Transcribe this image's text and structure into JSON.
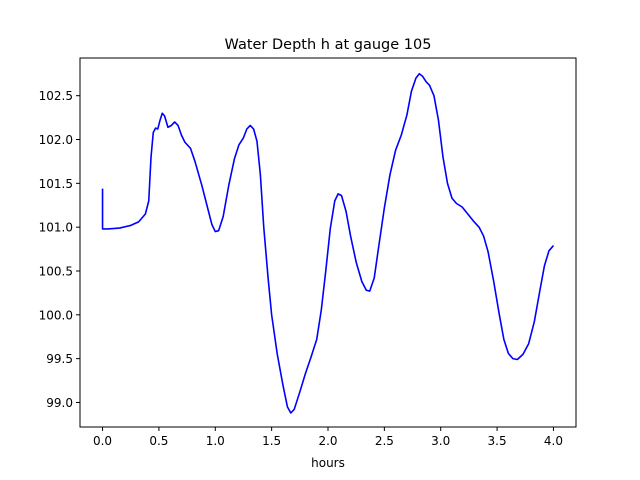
{
  "chart_data": {
    "type": "line",
    "title": "Water Depth h at gauge 105",
    "xlabel": "hours",
    "ylabel": "",
    "xlim": [
      -0.2,
      4.2
    ],
    "ylim": [
      98.72,
      102.93
    ],
    "x_ticks": [
      0.0,
      0.5,
      1.0,
      1.5,
      2.0,
      2.5,
      3.0,
      3.5,
      4.0
    ],
    "x_tick_labels": [
      "0.0",
      "0.5",
      "1.0",
      "1.5",
      "2.0",
      "2.5",
      "3.0",
      "3.5",
      "4.0"
    ],
    "y_ticks": [
      99.0,
      99.5,
      100.0,
      100.5,
      101.0,
      101.5,
      102.0,
      102.5
    ],
    "y_tick_labels": [
      "99.0",
      "99.5",
      "100.0",
      "100.5",
      "101.0",
      "101.5",
      "102.0",
      "102.5"
    ],
    "grid": false,
    "series": [
      {
        "color": "#0000ff",
        "points": [
          [
            0.0,
            101.44
          ],
          [
            0.0,
            100.98
          ],
          [
            0.05,
            100.98
          ],
          [
            0.15,
            100.99
          ],
          [
            0.25,
            101.02
          ],
          [
            0.32,
            101.06
          ],
          [
            0.38,
            101.15
          ],
          [
            0.41,
            101.3
          ],
          [
            0.43,
            101.8
          ],
          [
            0.45,
            102.08
          ],
          [
            0.47,
            102.13
          ],
          [
            0.49,
            102.12
          ],
          [
            0.51,
            102.22
          ],
          [
            0.53,
            102.3
          ],
          [
            0.55,
            102.27
          ],
          [
            0.58,
            102.14
          ],
          [
            0.61,
            102.16
          ],
          [
            0.64,
            102.2
          ],
          [
            0.67,
            102.16
          ],
          [
            0.7,
            102.05
          ],
          [
            0.73,
            101.97
          ],
          [
            0.78,
            101.9
          ],
          [
            0.82,
            101.75
          ],
          [
            0.88,
            101.48
          ],
          [
            0.93,
            101.23
          ],
          [
            0.97,
            101.03
          ],
          [
            1.0,
            100.95
          ],
          [
            1.03,
            100.96
          ],
          [
            1.07,
            101.12
          ],
          [
            1.12,
            101.48
          ],
          [
            1.17,
            101.78
          ],
          [
            1.21,
            101.94
          ],
          [
            1.25,
            102.02
          ],
          [
            1.28,
            102.12
          ],
          [
            1.31,
            102.16
          ],
          [
            1.34,
            102.12
          ],
          [
            1.37,
            101.98
          ],
          [
            1.4,
            101.6
          ],
          [
            1.43,
            101.0
          ],
          [
            1.47,
            100.4
          ],
          [
            1.5,
            100.0
          ],
          [
            1.55,
            99.55
          ],
          [
            1.6,
            99.2
          ],
          [
            1.64,
            98.95
          ],
          [
            1.67,
            98.88
          ],
          [
            1.7,
            98.92
          ],
          [
            1.75,
            99.12
          ],
          [
            1.8,
            99.33
          ],
          [
            1.85,
            99.52
          ],
          [
            1.9,
            99.72
          ],
          [
            1.94,
            100.05
          ],
          [
            1.98,
            100.5
          ],
          [
            2.02,
            100.98
          ],
          [
            2.06,
            101.3
          ],
          [
            2.09,
            101.38
          ],
          [
            2.12,
            101.36
          ],
          [
            2.16,
            101.18
          ],
          [
            2.2,
            100.9
          ],
          [
            2.25,
            100.6
          ],
          [
            2.3,
            100.38
          ],
          [
            2.34,
            100.28
          ],
          [
            2.37,
            100.27
          ],
          [
            2.41,
            100.42
          ],
          [
            2.45,
            100.78
          ],
          [
            2.5,
            101.22
          ],
          [
            2.55,
            101.6
          ],
          [
            2.6,
            101.88
          ],
          [
            2.65,
            102.05
          ],
          [
            2.7,
            102.28
          ],
          [
            2.74,
            102.55
          ],
          [
            2.78,
            102.7
          ],
          [
            2.81,
            102.75
          ],
          [
            2.84,
            102.72
          ],
          [
            2.87,
            102.66
          ],
          [
            2.9,
            102.62
          ],
          [
            2.94,
            102.5
          ],
          [
            2.98,
            102.22
          ],
          [
            3.02,
            101.8
          ],
          [
            3.06,
            101.5
          ],
          [
            3.1,
            101.33
          ],
          [
            3.14,
            101.27
          ],
          [
            3.19,
            101.23
          ],
          [
            3.24,
            101.15
          ],
          [
            3.29,
            101.07
          ],
          [
            3.34,
            101.0
          ],
          [
            3.38,
            100.9
          ],
          [
            3.42,
            100.72
          ],
          [
            3.47,
            100.38
          ],
          [
            3.52,
            100.0
          ],
          [
            3.56,
            99.72
          ],
          [
            3.6,
            99.56
          ],
          [
            3.64,
            99.5
          ],
          [
            3.68,
            99.49
          ],
          [
            3.73,
            99.55
          ],
          [
            3.78,
            99.67
          ],
          [
            3.83,
            99.92
          ],
          [
            3.88,
            100.28
          ],
          [
            3.92,
            100.56
          ],
          [
            3.96,
            100.73
          ],
          [
            4.0,
            100.79
          ]
        ]
      }
    ]
  }
}
